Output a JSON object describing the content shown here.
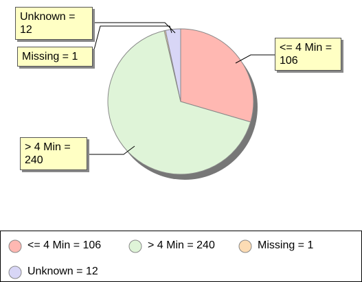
{
  "chart_data": {
    "type": "pie",
    "values": [
      106,
      240,
      1,
      12
    ],
    "value_labels": [
      "<= 4 Min = 106",
      "> 4 Min = 240",
      "Missing = 1",
      "Unknown = 12"
    ],
    "colors": [
      "#ffb8b2",
      "#dff4d8",
      "#fcdcb4",
      "#d8d6f6"
    ]
  }
}
